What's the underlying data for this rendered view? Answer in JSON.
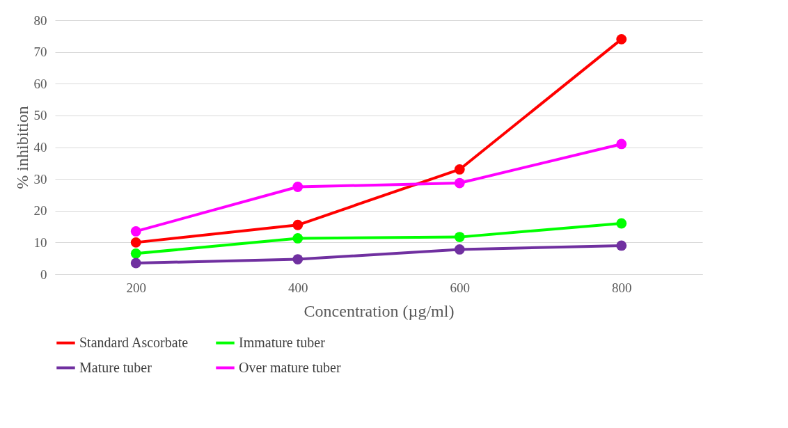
{
  "chart_data": {
    "type": "line",
    "xlabel": "Concentration (µg/ml)",
    "ylabel": "% inhibition",
    "categories": [
      "200",
      "400",
      "600",
      "800"
    ],
    "series": [
      {
        "name": "Standard Ascorbate",
        "color": "#ff0000",
        "values": [
          10,
          15.5,
          33,
          74
        ]
      },
      {
        "name": "Immature tuber",
        "color": "#00ff00",
        "values": [
          6.5,
          11.3,
          11.7,
          16
        ]
      },
      {
        "name": "Mature tuber",
        "color": "#7030a0",
        "values": [
          3.5,
          4.7,
          7.8,
          9
        ]
      },
      {
        "name": "Over mature tuber",
        "color": "#ff00ff",
        "values": [
          13.5,
          27.5,
          28.7,
          41
        ]
      }
    ],
    "ylim": [
      0,
      80
    ],
    "yticks": [
      0,
      10,
      20,
      30,
      40,
      50,
      60,
      70,
      80
    ],
    "grid": "y",
    "legend": "bottom",
    "marker": "circle",
    "line_style": "solid"
  }
}
